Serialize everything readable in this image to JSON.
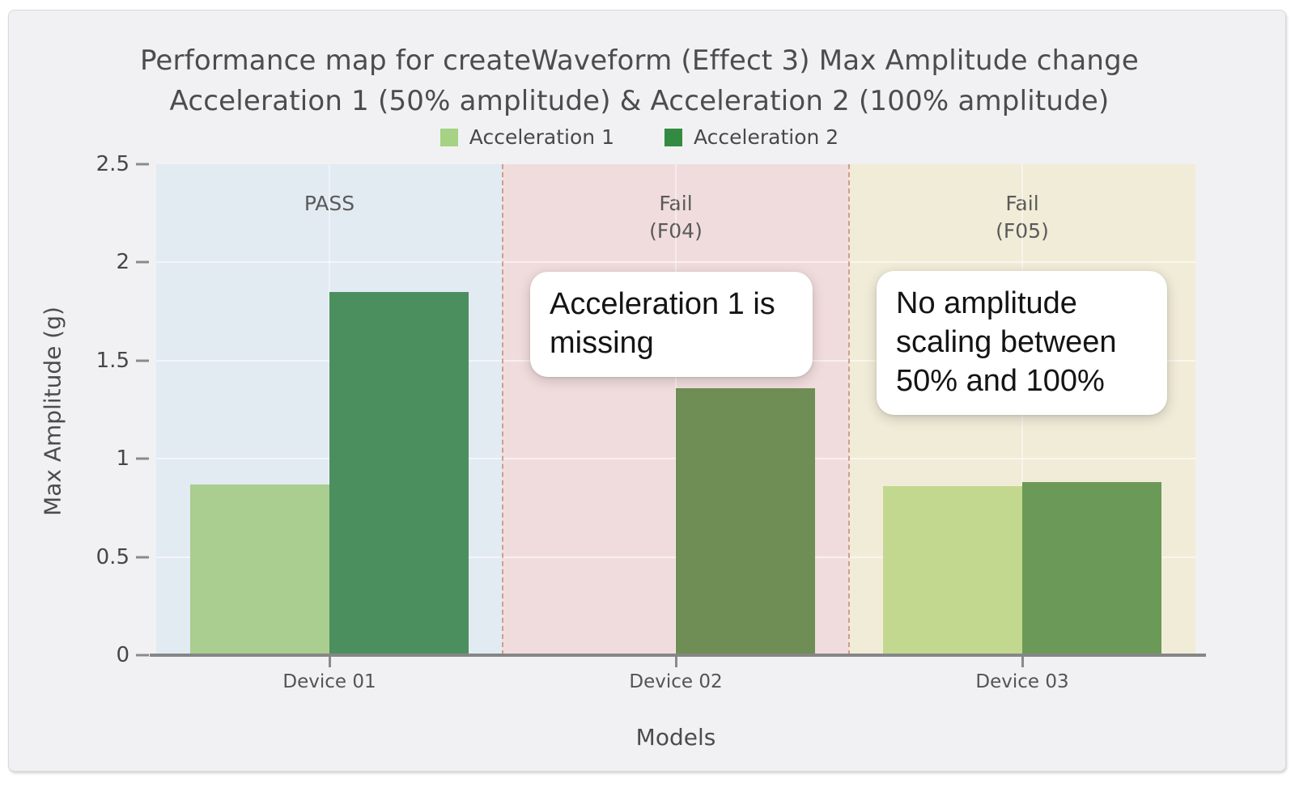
{
  "title": {
    "line1": "Performance map for createWaveform (Effect 3) Max Amplitude change",
    "line2": "Acceleration 1 (50% amplitude) & Acceleration 2 (100% amplitude)"
  },
  "colors": {
    "card_background": "#f1f1f3",
    "region_pass": "#e2eaf2",
    "region_fail_f04": "#f1dcdd",
    "region_fail_f05": "#f1ecd8",
    "region_separator": "#cf9e8e",
    "axis_line": "#868686",
    "text_gray": "#4c4c4c"
  },
  "chart_data": {
    "type": "bar",
    "title": "Performance map for createWaveform (Effect 3) Max Amplitude change — Acceleration 1 (50% amplitude) & Acceleration 2 (100% amplitude)",
    "xlabel": "Models",
    "ylabel": "Max Amplitude (g)",
    "ylim": [
      0,
      2.5
    ],
    "yticks": [
      0,
      0.5,
      1,
      1.5,
      2,
      2.5
    ],
    "grid": true,
    "legend_position": "top",
    "categories": [
      "Device 01",
      "Device 02",
      "Device 03"
    ],
    "series": [
      {
        "name": "Acceleration 1",
        "legend_color": "#a5d284",
        "values": [
          0.87,
          null,
          0.86
        ],
        "bar_colors": [
          "#aacd90",
          null,
          "#c2d88e"
        ]
      },
      {
        "name": "Acceleration 2",
        "legend_color": "#338a41",
        "values": [
          1.85,
          1.36,
          0.88
        ],
        "bar_colors": [
          "#4b8f5e",
          "#6f8e55",
          "#6b9a58"
        ]
      }
    ],
    "regions": [
      {
        "label_lines": [
          "PASS"
        ],
        "bg": "#e2eaf2"
      },
      {
        "label_lines": [
          "Fail",
          "(F04)"
        ],
        "bg": "#f1dcdd"
      },
      {
        "label_lines": [
          "Fail",
          "(F05)"
        ],
        "bg": "#f1ecd8"
      }
    ],
    "annotations": [
      {
        "text": "Acceleration 1 is missing",
        "region_index": 1
      },
      {
        "text": "No amplitude scaling between 50% and 100%",
        "region_index": 2
      }
    ]
  }
}
